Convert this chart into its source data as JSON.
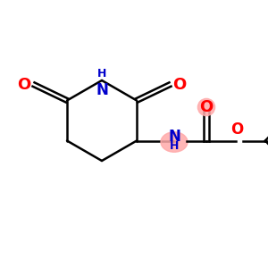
{
  "background_color": "#ffffff",
  "bond_color": "#000000",
  "nitrogen_color": "#0000cc",
  "oxygen_color": "#ff0000",
  "highlight_color_nh": "#ffaaaa",
  "highlight_color_o": "#ffaaaa",
  "figsize": [
    3.0,
    3.0
  ],
  "dpi": 100,
  "xlim": [
    0,
    10
  ],
  "ylim": [
    0,
    10
  ]
}
